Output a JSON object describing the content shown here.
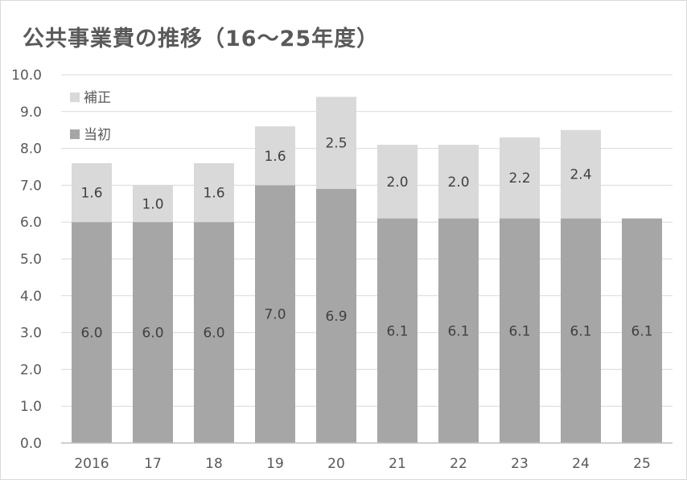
{
  "colors": {
    "base": "#a6a6a6",
    "supplementary": "#d9d9d9",
    "grid": "#d9d9d9",
    "axis": "#bfbfbf",
    "text": "#595959"
  },
  "chart_data": {
    "type": "bar",
    "stacked": true,
    "title": "公共事業費の推移（16～25年度）",
    "xlabel": "",
    "ylabel": "",
    "categories": [
      "2016",
      "17",
      "18",
      "19",
      "20",
      "21",
      "22",
      "23",
      "24",
      "25"
    ],
    "series": [
      {
        "name": "当初",
        "values": [
          6.0,
          6.0,
          6.0,
          7.0,
          6.9,
          6.1,
          6.1,
          6.1,
          6.1,
          6.1
        ],
        "color": "#a6a6a6"
      },
      {
        "name": "補正",
        "values": [
          1.6,
          1.0,
          1.6,
          1.6,
          2.5,
          2.0,
          2.0,
          2.2,
          2.4,
          null
        ],
        "color": "#d9d9d9"
      }
    ],
    "ylim": [
      0,
      10
    ],
    "yticks": [
      "0.0",
      "1.0",
      "2.0",
      "3.0",
      "4.0",
      "5.0",
      "6.0",
      "7.0",
      "8.0",
      "9.0",
      "10.0"
    ],
    "grid": true,
    "legend_position": "top-left inside plot",
    "legend_order": [
      "補正",
      "当初"
    ]
  }
}
